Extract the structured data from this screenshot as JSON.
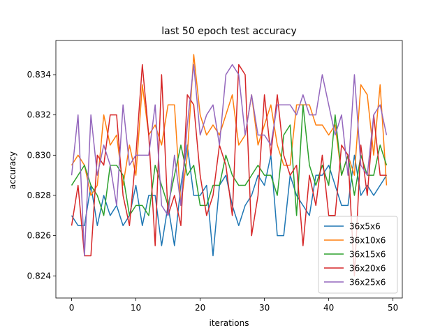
{
  "chart_data": {
    "type": "line",
    "title": "last 50 epoch test accuracy",
    "xlabel": "iterations",
    "ylabel": "accuracy",
    "xlim": [
      -2.45,
      51.45
    ],
    "ylim": [
      0.8229,
      0.8357
    ],
    "xticks": [
      0,
      10,
      20,
      30,
      40,
      50
    ],
    "xtick_labels": [
      "0",
      "10",
      "20",
      "30",
      "40",
      "50"
    ],
    "yticks": [
      0.824,
      0.826,
      0.828,
      0.83,
      0.832,
      0.834
    ],
    "ytick_labels": [
      "0.824",
      "0.826",
      "0.828",
      "0.830",
      "0.832",
      "0.834"
    ],
    "grid": false,
    "legend_position": "lower-right",
    "x": [
      0,
      1,
      2,
      3,
      4,
      5,
      6,
      7,
      8,
      9,
      10,
      11,
      12,
      13,
      14,
      15,
      16,
      17,
      18,
      19,
      20,
      21,
      22,
      23,
      24,
      25,
      26,
      27,
      28,
      29,
      30,
      31,
      32,
      33,
      34,
      35,
      36,
      37,
      38,
      39,
      40,
      41,
      42,
      43,
      44,
      45,
      46,
      47,
      48,
      49
    ],
    "series": [
      {
        "name": "36x5x6",
        "color": "#1f77b4",
        "values": [
          0.827,
          0.8265,
          0.8265,
          0.8285,
          0.8265,
          0.828,
          0.827,
          0.8275,
          0.8265,
          0.827,
          0.8285,
          0.8265,
          0.828,
          0.828,
          0.8255,
          0.8275,
          0.8255,
          0.8285,
          0.8305,
          0.828,
          0.828,
          0.8285,
          0.825,
          0.8285,
          0.829,
          0.8275,
          0.8265,
          0.8275,
          0.828,
          0.829,
          0.8285,
          0.83,
          0.826,
          0.826,
          0.829,
          0.828,
          0.8275,
          0.827,
          0.829,
          0.829,
          0.8295,
          0.8285,
          0.8275,
          0.8275,
          0.83,
          0.828,
          0.8285,
          0.828,
          0.8285,
          0.829
        ]
      },
      {
        "name": "36x10x6",
        "color": "#ff7f0e",
        "values": [
          0.8295,
          0.83,
          0.8295,
          0.828,
          0.8285,
          0.832,
          0.8305,
          0.831,
          0.8285,
          0.8305,
          0.829,
          0.8335,
          0.831,
          0.8315,
          0.8305,
          0.8325,
          0.8325,
          0.8275,
          0.83,
          0.835,
          0.832,
          0.831,
          0.8315,
          0.831,
          0.832,
          0.833,
          0.8305,
          0.831,
          0.833,
          0.8305,
          0.8315,
          0.8325,
          0.8305,
          0.8295,
          0.8295,
          0.8325,
          0.8325,
          0.8325,
          0.8315,
          0.8315,
          0.831,
          0.8315,
          0.829,
          0.83,
          0.829,
          0.8335,
          0.833,
          0.83,
          0.8335,
          0.8285
        ]
      },
      {
        "name": "36x15x6",
        "color": "#2ca02c",
        "values": [
          0.8285,
          0.829,
          0.8295,
          0.8285,
          0.828,
          0.827,
          0.8295,
          0.8295,
          0.829,
          0.827,
          0.8275,
          0.8275,
          0.827,
          0.8295,
          0.8285,
          0.8275,
          0.829,
          0.8305,
          0.829,
          0.8295,
          0.8275,
          0.8275,
          0.8285,
          0.8285,
          0.83,
          0.829,
          0.8285,
          0.8285,
          0.829,
          0.8295,
          0.829,
          0.829,
          0.828,
          0.831,
          0.8315,
          0.827,
          0.8325,
          0.8295,
          0.8285,
          0.8295,
          0.8285,
          0.832,
          0.829,
          0.83,
          0.828,
          0.83,
          0.829,
          0.829,
          0.8305,
          0.8295
        ]
      },
      {
        "name": "36x20x6",
        "color": "#d62728",
        "values": [
          0.8265,
          0.8285,
          0.825,
          0.825,
          0.83,
          0.8295,
          0.832,
          0.832,
          0.828,
          0.8265,
          0.83,
          0.8345,
          0.831,
          0.8255,
          0.834,
          0.827,
          0.828,
          0.8265,
          0.833,
          0.8325,
          0.829,
          0.827,
          0.828,
          0.8305,
          0.8295,
          0.827,
          0.8345,
          0.834,
          0.826,
          0.828,
          0.833,
          0.83,
          0.833,
          0.83,
          0.829,
          0.8295,
          0.8255,
          0.829,
          0.8275,
          0.83,
          0.827,
          0.827,
          0.8305,
          0.83,
          0.824,
          0.8305,
          0.828,
          0.832,
          0.829,
          0.829
        ]
      },
      {
        "name": "36x25x6",
        "color": "#9467bd",
        "values": [
          0.829,
          0.832,
          0.825,
          0.832,
          0.829,
          0.8305,
          0.8295,
          0.8275,
          0.8325,
          0.8295,
          0.83,
          0.83,
          0.83,
          0.8325,
          0.8275,
          0.827,
          0.83,
          0.8275,
          0.8315,
          0.8345,
          0.831,
          0.832,
          0.8325,
          0.8305,
          0.834,
          0.8345,
          0.834,
          0.831,
          0.833,
          0.831,
          0.831,
          0.8305,
          0.8325,
          0.8325,
          0.8325,
          0.832,
          0.833,
          0.832,
          0.832,
          0.834,
          0.8325,
          0.831,
          0.832,
          0.829,
          0.834,
          0.8295,
          0.829,
          0.832,
          0.8325,
          0.831
        ]
      }
    ]
  }
}
